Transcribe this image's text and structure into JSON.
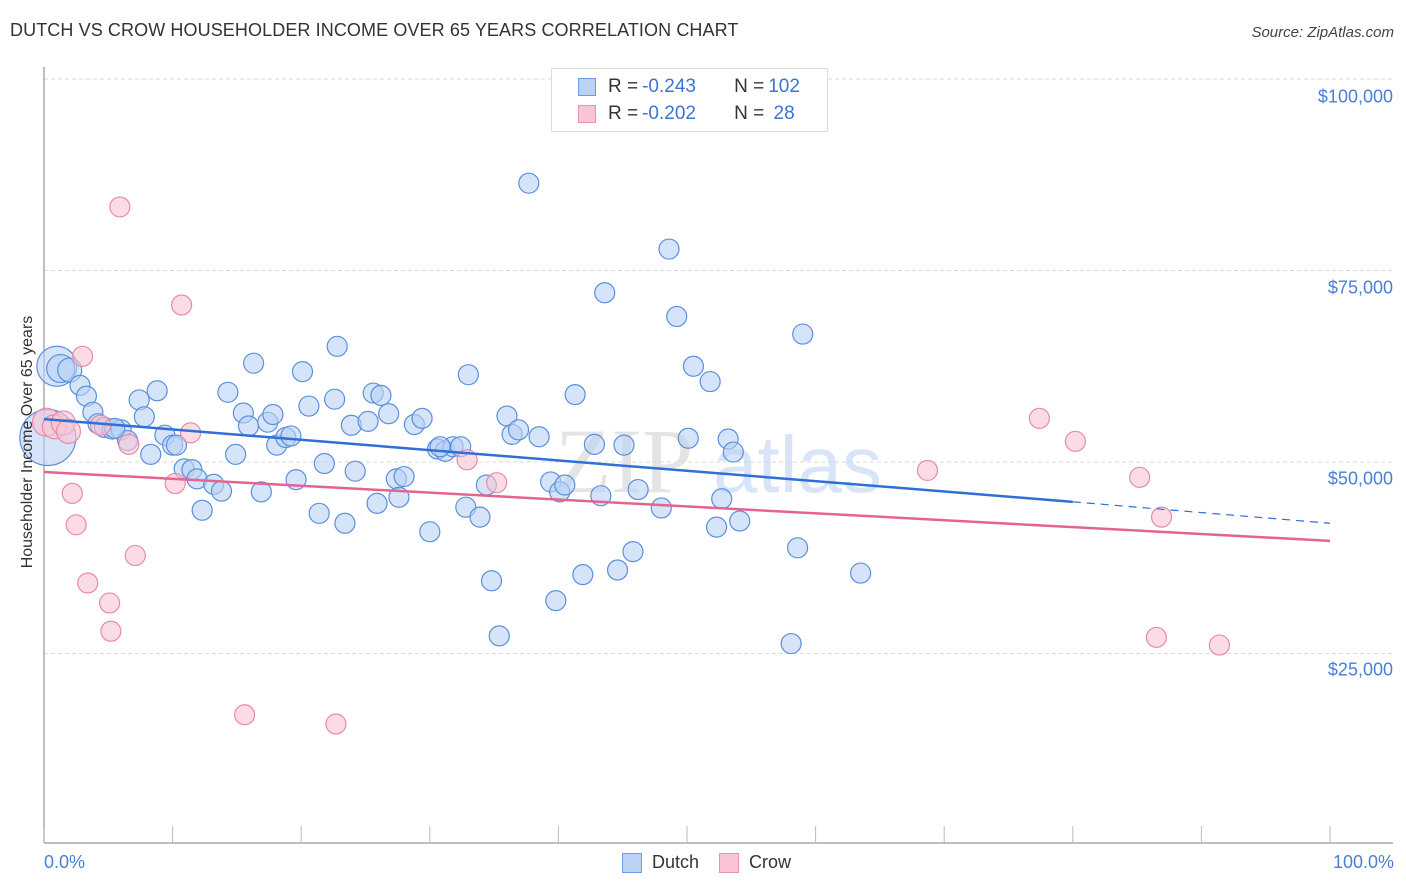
{
  "header": {
    "title": "DUTCH VS CROW HOUSEHOLDER INCOME OVER 65 YEARS CORRELATION CHART",
    "source": "Source: ZipAtlas.com"
  },
  "legend": {
    "rows": [
      {
        "r_label": "R = ",
        "r_value": "-0.243",
        "n_label": "N = ",
        "n_value": "102"
      },
      {
        "r_label": "R = ",
        "r_value": "-0.202",
        "n_label": "N = ",
        "n_value": " 28"
      }
    ]
  },
  "bottom_legend": [
    {
      "label": "Dutch"
    },
    {
      "label": "Crow"
    }
  ],
  "axes": {
    "ylabel": "Householder Income Over 65 years",
    "yticks": [
      "$100,000",
      "$75,000",
      "$50,000",
      "$25,000"
    ],
    "xticks": [
      "0.0%",
      "100.0%"
    ]
  },
  "watermark": {
    "zip": "ZIP",
    "atlas": "atlas"
  },
  "colors": {
    "dutch_fill": "#b9d2f5",
    "dutch_stroke": "#5b8fdc",
    "dutch_line": "#2f6fd6",
    "crow_fill": "#f9c5d4",
    "crow_stroke": "#e88aa6",
    "crow_line": "#e5648f",
    "tick_text": "#4a7fd4"
  },
  "chart_data": {
    "type": "scatter",
    "title": "DUTCH VS CROW HOUSEHOLDER INCOME OVER 65 YEARS CORRELATION CHART",
    "xlabel": "",
    "ylabel": "Householder Income Over 65 years",
    "xlim": [
      0,
      100
    ],
    "ylim": [
      0,
      102000
    ],
    "x_tick_labels": [
      "0.0%",
      "100.0%"
    ],
    "y_tick_values": [
      25000,
      50000,
      75000,
      100000
    ],
    "y_tick_labels": [
      "$25,000",
      "$50,000",
      "$75,000",
      "$100,000"
    ],
    "grid": "horizontal dashed",
    "legend_position": "top-center and bottom",
    "series": [
      {
        "name": "Dutch",
        "R": -0.243,
        "N": 102,
        "trend": {
          "x0": 0,
          "y0": 55600,
          "x1": 80,
          "y1": 44800,
          "dashed_to": {
            "x": 100,
            "y": 42000
          }
        },
        "points": [
          [
            0.3,
            53200,
            28
          ],
          [
            1.0,
            62500,
            20
          ],
          [
            1.3,
            62200,
            14
          ],
          [
            2.0,
            62000,
            12
          ],
          [
            2.8,
            60000,
            10
          ],
          [
            3.3,
            58600,
            10
          ],
          [
            3.8,
            56500,
            10
          ],
          [
            4.2,
            55000,
            10
          ],
          [
            4.7,
            54500,
            10
          ],
          [
            5.3,
            54300,
            10
          ],
          [
            6.0,
            54200,
            10
          ],
          [
            6.5,
            52800,
            10
          ],
          [
            7.4,
            58100,
            10
          ],
          [
            7.8,
            55900,
            10
          ],
          [
            8.3,
            51000,
            10
          ],
          [
            8.8,
            59300,
            10
          ],
          [
            9.4,
            53500,
            10
          ],
          [
            10.0,
            52200,
            10
          ],
          [
            10.3,
            52200,
            10
          ],
          [
            10.9,
            49100,
            10
          ],
          [
            11.5,
            49000,
            10
          ],
          [
            11.9,
            47800,
            10
          ],
          [
            12.3,
            43700,
            10
          ],
          [
            13.2,
            47100,
            10
          ],
          [
            13.8,
            46200,
            10
          ],
          [
            14.3,
            59100,
            10
          ],
          [
            14.9,
            51000,
            10
          ],
          [
            15.5,
            56400,
            10
          ],
          [
            15.9,
            54700,
            10
          ],
          [
            16.3,
            62900,
            10
          ],
          [
            16.9,
            46100,
            10
          ],
          [
            17.4,
            55200,
            10
          ],
          [
            17.8,
            56200,
            10
          ],
          [
            18.1,
            52200,
            10
          ],
          [
            18.8,
            53200,
            10
          ],
          [
            19.2,
            53400,
            10
          ],
          [
            19.6,
            47700,
            10
          ],
          [
            20.1,
            61800,
            10
          ],
          [
            20.6,
            57300,
            10
          ],
          [
            21.4,
            43300,
            10
          ],
          [
            21.8,
            49800,
            10
          ],
          [
            22.6,
            58200,
            10
          ],
          [
            22.8,
            65100,
            10
          ],
          [
            23.4,
            42000,
            10
          ],
          [
            23.9,
            54800,
            10
          ],
          [
            24.2,
            48800,
            10
          ],
          [
            25.2,
            55300,
            10
          ],
          [
            25.6,
            59000,
            10
          ],
          [
            25.9,
            44600,
            10
          ],
          [
            26.2,
            58700,
            10
          ],
          [
            26.8,
            56300,
            10
          ],
          [
            27.4,
            47800,
            10
          ],
          [
            27.6,
            45400,
            10
          ],
          [
            28.0,
            48100,
            10
          ],
          [
            28.8,
            54900,
            10
          ],
          [
            29.4,
            55700,
            10
          ],
          [
            30.0,
            40900,
            10
          ],
          [
            30.6,
            51700,
            10
          ],
          [
            31.2,
            51400,
            10
          ],
          [
            31.8,
            52000,
            10
          ],
          [
            32.4,
            52000,
            10
          ],
          [
            32.8,
            44100,
            10
          ],
          [
            33.0,
            61400,
            10
          ],
          [
            33.9,
            42800,
            10
          ],
          [
            34.4,
            47000,
            10
          ],
          [
            34.8,
            34500,
            10
          ],
          [
            35.4,
            27300,
            10
          ],
          [
            36.0,
            56000,
            10
          ],
          [
            36.4,
            53600,
            10
          ],
          [
            36.9,
            54200,
            10
          ],
          [
            37.7,
            86400,
            10
          ],
          [
            38.5,
            53300,
            10
          ],
          [
            39.4,
            47400,
            10
          ],
          [
            39.8,
            31900,
            10
          ],
          [
            40.1,
            46100,
            10
          ],
          [
            40.5,
            47000,
            10
          ],
          [
            41.3,
            58800,
            10
          ],
          [
            41.9,
            35300,
            10
          ],
          [
            42.8,
            52300,
            10
          ],
          [
            43.3,
            45600,
            10
          ],
          [
            43.6,
            72100,
            10
          ],
          [
            44.6,
            35900,
            10
          ],
          [
            45.1,
            52200,
            10
          ],
          [
            45.8,
            38300,
            10
          ],
          [
            46.2,
            46400,
            10
          ],
          [
            48.0,
            44000,
            10
          ],
          [
            48.6,
            77800,
            10
          ],
          [
            49.2,
            69000,
            10
          ],
          [
            50.1,
            53100,
            10
          ],
          [
            50.5,
            62500,
            10
          ],
          [
            51.8,
            60500,
            10
          ],
          [
            52.3,
            41500,
            10
          ],
          [
            52.7,
            45200,
            10
          ],
          [
            53.2,
            53000,
            10
          ],
          [
            53.6,
            51300,
            10
          ],
          [
            54.1,
            42300,
            10
          ],
          [
            58.1,
            26300,
            10
          ],
          [
            58.6,
            38800,
            10
          ],
          [
            59.0,
            66700,
            10
          ],
          [
            63.5,
            35500,
            10
          ],
          [
            5.5,
            54400,
            10
          ],
          [
            30.8,
            52000,
            10
          ]
        ]
      },
      {
        "name": "Crow",
        "R": -0.202,
        "N": 28,
        "trend": {
          "x0": 0,
          "y0": 48700,
          "x1": 100,
          "y1": 39700
        },
        "points": [
          [
            0.2,
            55200,
            14
          ],
          [
            0.8,
            54600,
            12
          ],
          [
            1.5,
            55100,
            12
          ],
          [
            1.9,
            54000,
            12
          ],
          [
            2.2,
            45900,
            10
          ],
          [
            2.5,
            41800,
            10
          ],
          [
            3.0,
            63800,
            10
          ],
          [
            3.4,
            34200,
            10
          ],
          [
            4.4,
            54800,
            10
          ],
          [
            5.1,
            31600,
            10
          ],
          [
            5.2,
            27900,
            10
          ],
          [
            5.9,
            83300,
            10
          ],
          [
            6.6,
            52300,
            10
          ],
          [
            7.1,
            37800,
            10
          ],
          [
            10.2,
            47200,
            10
          ],
          [
            10.7,
            70500,
            10
          ],
          [
            11.4,
            53800,
            10
          ],
          [
            15.6,
            17000,
            10
          ],
          [
            22.7,
            15800,
            10
          ],
          [
            32.9,
            50300,
            10
          ],
          [
            35.2,
            47300,
            10
          ],
          [
            68.7,
            48900,
            10
          ],
          [
            77.4,
            55700,
            10
          ],
          [
            80.2,
            52700,
            10
          ],
          [
            85.2,
            48000,
            10
          ],
          [
            86.9,
            42800,
            10
          ],
          [
            86.5,
            27100,
            10
          ],
          [
            91.4,
            26100,
            10
          ]
        ]
      }
    ]
  }
}
